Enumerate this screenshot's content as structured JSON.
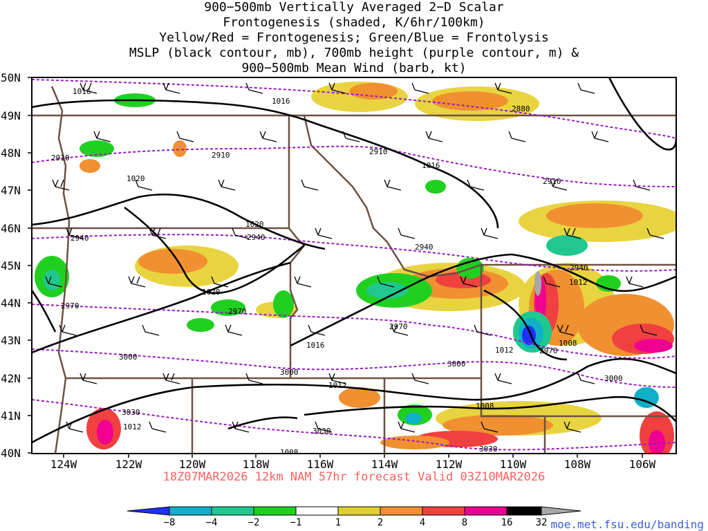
{
  "title_lines": [
    "900−500mb Vertically Averaged 2−D Scalar",
    "Frontogenesis (shaded, K/6hr/100km)",
    "Yellow/Red = Frontogenesis;  Green/Blue = Frontolysis",
    "MSLP (black contour, mb), 700mb height (purple contour, m) &",
    "900−500mb Mean Wind (barb, kt)"
  ],
  "lat_labels": [
    "50N",
    "49N",
    "48N",
    "47N",
    "46N",
    "45N",
    "44N",
    "43N",
    "42N",
    "41N",
    "40N"
  ],
  "lon_labels": [
    "124W",
    "122W",
    "120W",
    "118W",
    "116W",
    "114W",
    "112W",
    "110W",
    "108W",
    "106W"
  ],
  "footer": "18Z07MAR2026 12km NAM 57hr forecast Valid 03Z10MAR2026",
  "credit": "moe.met.fsu.edu/banding",
  "colorbar": {
    "labels": [
      "−8",
      "−4",
      "−2",
      "−1",
      "1",
      "2",
      "4",
      "8",
      "16",
      "32"
    ],
    "colors": [
      "#2030ff",
      "#10b0c8",
      "#20c890",
      "#20d020",
      "#ffffff",
      "#e0d030",
      "#f09030",
      "#f04040",
      "#f00090",
      "#000000",
      "#a8a8a8"
    ]
  },
  "mslp_labels": [
    "1016",
    "1016",
    "1016",
    "1020",
    "1020",
    "1020",
    "1016",
    "1012",
    "1008",
    "1012",
    "1008",
    "1012",
    "1012",
    "1008"
  ],
  "height_labels": [
    "2880",
    "2910",
    "2910",
    "2910",
    "2910",
    "2940",
    "2940",
    "2940",
    "2940",
    "2970",
    "2970",
    "2970",
    "2970",
    "3000",
    "3000",
    "3000",
    "3000",
    "3030",
    "3030",
    "3030"
  ],
  "colors": {
    "mslp": "#000000",
    "height": "#9a18c8",
    "border": "#6e5040",
    "footer": "#ff6060",
    "credit": "#3a5fd9"
  }
}
